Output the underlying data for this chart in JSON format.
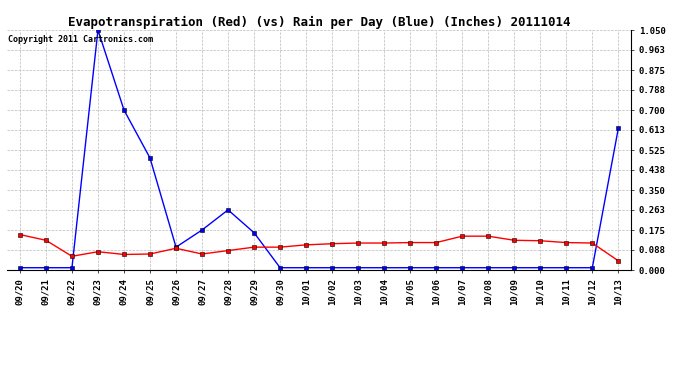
{
  "title": "Evapotranspiration (Red) (vs) Rain per Day (Blue) (Inches) 20111014",
  "copyright": "Copyright 2011 Cartronics.com",
  "labels": [
    "09/20",
    "09/21",
    "09/22",
    "09/23",
    "09/24",
    "09/25",
    "09/26",
    "09/27",
    "09/28",
    "09/29",
    "09/30",
    "10/01",
    "10/02",
    "10/03",
    "10/04",
    "10/05",
    "10/06",
    "10/07",
    "10/08",
    "10/09",
    "10/10",
    "10/11",
    "10/12",
    "10/13"
  ],
  "blue_values": [
    0.01,
    0.01,
    0.01,
    1.05,
    0.7,
    0.49,
    0.1,
    0.175,
    0.263,
    0.163,
    0.01,
    0.01,
    0.01,
    0.01,
    0.01,
    0.01,
    0.01,
    0.01,
    0.01,
    0.01,
    0.01,
    0.01,
    0.01,
    0.62
  ],
  "red_values": [
    0.155,
    0.13,
    0.06,
    0.08,
    0.068,
    0.07,
    0.095,
    0.07,
    0.085,
    0.1,
    0.1,
    0.11,
    0.115,
    0.118,
    0.118,
    0.12,
    0.12,
    0.148,
    0.148,
    0.13,
    0.128,
    0.12,
    0.118,
    0.04
  ],
  "ylim": [
    0.0,
    1.05
  ],
  "yticks": [
    0.0,
    0.088,
    0.175,
    0.263,
    0.35,
    0.438,
    0.525,
    0.613,
    0.7,
    0.788,
    0.875,
    0.963,
    1.05
  ],
  "bg_color": "#ffffff",
  "grid_color": "#bbbbbb",
  "blue_color": "#0000ff",
  "red_color": "#ff0000",
  "title_fontsize": 9,
  "copyright_fontsize": 6,
  "tick_fontsize": 6.5
}
